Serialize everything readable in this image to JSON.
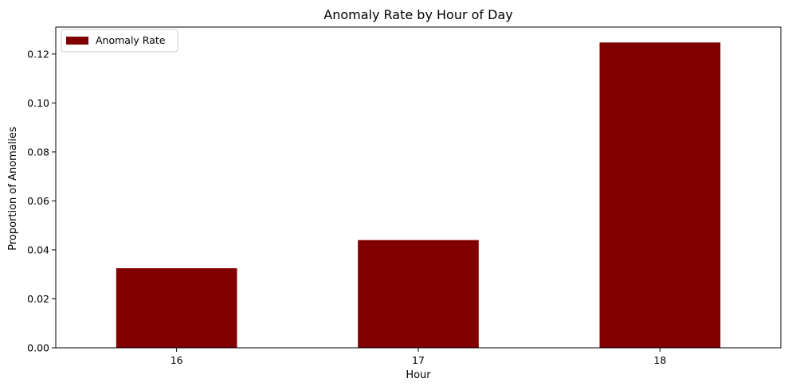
{
  "chart_data": {
    "type": "bar",
    "title": "Anomaly Rate by Hour of Day",
    "xlabel": "Hour",
    "ylabel": "Proportion of Anomalies",
    "categories": [
      "16",
      "17",
      "18"
    ],
    "series": [
      {
        "name": "Anomaly Rate",
        "values": [
          0.0325,
          0.044,
          0.1247
        ]
      }
    ],
    "ylim": [
      0,
      0.131
    ],
    "yticks": [
      0.0,
      0.02,
      0.04,
      0.06,
      0.08,
      0.1,
      0.12
    ],
    "ytick_labels": [
      "0.00",
      "0.02",
      "0.04",
      "0.06",
      "0.08",
      "0.10",
      "0.12"
    ],
    "legend": {
      "position": "top-left",
      "entries": [
        "Anomaly Rate"
      ]
    },
    "grid": false,
    "colors": {
      "bar": "#800000",
      "axis": "#000000",
      "background": "#ffffff"
    }
  }
}
